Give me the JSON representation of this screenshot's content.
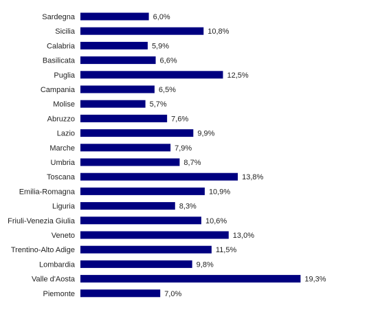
{
  "chart_data": {
    "type": "bar",
    "orientation": "horizontal",
    "title": "",
    "xlabel": "",
    "ylabel": "",
    "value_suffix": "%",
    "decimal_separator": ",",
    "xlim": [
      0,
      20
    ],
    "grid": false,
    "legend": "none",
    "bar_color": "#000080",
    "categories": [
      "Sardegna",
      "Sicilia",
      "Calabria",
      "Basilicata",
      "Puglia",
      "Campania",
      "Molise",
      "Abruzzo",
      "Lazio",
      "Marche",
      "Umbria",
      "Toscana",
      "Emilia-Romagna",
      "Liguria",
      "Friuli-Venezia Giulia",
      "Veneto",
      "Trentino-Alto Adige",
      "Lombardia",
      "Valle d'Aosta",
      "Piemonte"
    ],
    "values": [
      6.0,
      10.8,
      5.9,
      6.6,
      12.5,
      6.5,
      5.7,
      7.6,
      9.9,
      7.9,
      8.7,
      13.8,
      10.9,
      8.3,
      10.6,
      13.0,
      11.5,
      9.8,
      19.3,
      7.0
    ],
    "labels": [
      "6,0%",
      "10,8%",
      "5,9%",
      "6,6%",
      "12,5%",
      "6,5%",
      "5,7%",
      "7,6%",
      "9,9%",
      "7,9%",
      "8,7%",
      "13,8%",
      "10,9%",
      "8,3%",
      "10,6%",
      "13,0%",
      "11,5%",
      "9,8%",
      "19,3%",
      "7,0%"
    ]
  }
}
